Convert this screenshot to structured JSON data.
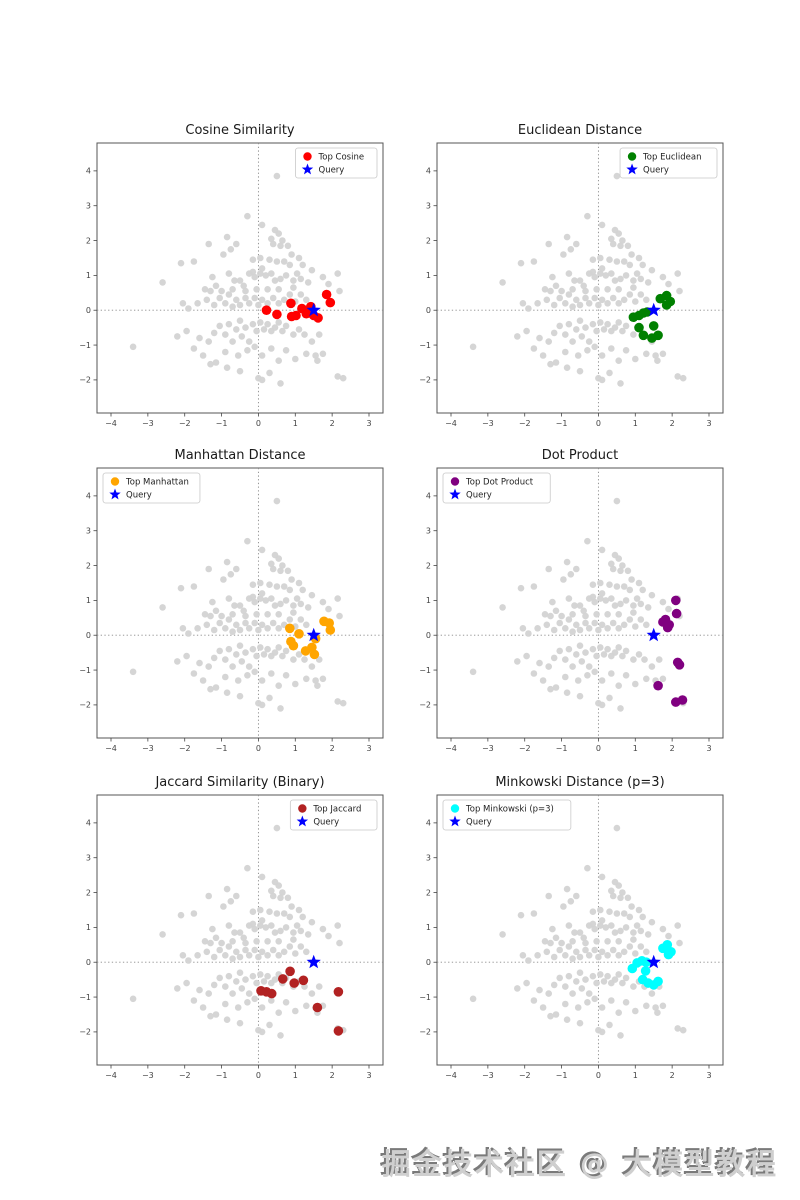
{
  "page": {
    "background": "#ffffff",
    "watermark": "掘金技术社区 @ 大模型教程"
  },
  "chart_data": {
    "type": "scatter",
    "grid": {
      "rows": 3,
      "cols": 2
    },
    "axes": {
      "xlim": [
        -4.38,
        3.38
      ],
      "ylim": [
        -2.95,
        4.8
      ],
      "xticks": [
        -4,
        -3,
        -2,
        -1,
        0,
        1,
        2,
        3
      ],
      "yticks": [
        -2,
        -1,
        0,
        1,
        2,
        3,
        4
      ],
      "zero_lines": "dotted gray at x=0 and y=0",
      "grid_on": false,
      "spine_color": "#555555",
      "tick_label_color": "#444444"
    },
    "query": {
      "label": "Query",
      "point": [
        1.5,
        0.0
      ],
      "color": "#0000ff",
      "marker": "star"
    },
    "background_series": {
      "name": "all-vectors",
      "color": "#d3d3d3",
      "points": [
        [
          -3.4,
          -1.05
        ],
        [
          -2.6,
          0.8
        ],
        [
          -2.1,
          1.35
        ],
        [
          -1.75,
          1.4
        ],
        [
          -1.35,
          1.9
        ],
        [
          -0.85,
          2.1
        ],
        [
          -0.6,
          1.9
        ],
        [
          -0.3,
          2.7
        ],
        [
          0.1,
          2.45
        ],
        [
          0.5,
          3.85
        ],
        [
          0.35,
          2.05
        ],
        [
          0.55,
          2.2
        ],
        [
          0.4,
          1.9
        ],
        [
          0.6,
          1.85
        ],
        [
          0.8,
          1.85
        ],
        [
          -0.95,
          1.6
        ],
        [
          -1.25,
          0.95
        ],
        [
          -1.3,
          0.55
        ],
        [
          -0.75,
          1.75
        ],
        [
          -0.15,
          1.45
        ],
        [
          0.05,
          1.5
        ],
        [
          0.3,
          1.45
        ],
        [
          0.5,
          1.4
        ],
        [
          0.7,
          1.4
        ],
        [
          0.85,
          1.3
        ],
        [
          0.1,
          1.2
        ],
        [
          -0.15,
          1.1
        ],
        [
          1.05,
          1.05
        ],
        [
          2.15,
          1.05
        ],
        [
          -0.8,
          1.05
        ],
        [
          -0.65,
          0.85
        ],
        [
          -0.5,
          0.85
        ],
        [
          -0.4,
          0.7
        ],
        [
          -1.15,
          0.7
        ],
        [
          -0.25,
          1.05
        ],
        [
          -0.1,
          0.95
        ],
        [
          0.05,
          1.05
        ],
        [
          0.2,
          1.0
        ],
        [
          0.35,
          1.05
        ],
        [
          0.45,
          0.85
        ],
        [
          0.6,
          0.9
        ],
        [
          0.75,
          1.0
        ],
        [
          0.95,
          0.85
        ],
        [
          1.15,
          0.9
        ],
        [
          1.35,
          0.8
        ],
        [
          1.75,
          0.95
        ],
        [
          1.9,
          0.75
        ],
        [
          2.2,
          0.55
        ],
        [
          -2.05,
          0.2
        ],
        [
          -1.9,
          0.05
        ],
        [
          -1.65,
          0.2
        ],
        [
          -1.4,
          0.3
        ],
        [
          -1.2,
          0.15
        ],
        [
          -1.05,
          0.35
        ],
        [
          -0.9,
          0.2
        ],
        [
          -0.8,
          0.45
        ],
        [
          -0.7,
          0.1
        ],
        [
          -0.6,
          0.3
        ],
        [
          -0.5,
          0.15
        ],
        [
          -0.35,
          0.35
        ],
        [
          -0.25,
          0.2
        ],
        [
          -0.1,
          0.35
        ],
        [
          0.0,
          0.15
        ],
        [
          0.1,
          0.3
        ],
        [
          0.25,
          0.2
        ],
        [
          0.4,
          0.35
        ],
        [
          0.55,
          0.2
        ],
        [
          0.7,
          0.3
        ],
        [
          0.85,
          0.45
        ],
        [
          1.0,
          0.25
        ],
        [
          1.15,
          0.45
        ],
        [
          1.3,
          0.3
        ],
        [
          0.95,
          0.65
        ],
        [
          0.55,
          0.6
        ],
        [
          0.25,
          0.6
        ],
        [
          -0.05,
          0.6
        ],
        [
          -0.35,
          0.55
        ],
        [
          -0.7,
          0.6
        ],
        [
          -1.0,
          0.55
        ],
        [
          -1.45,
          0.6
        ],
        [
          -2.2,
          -0.75
        ],
        [
          -1.95,
          -0.6
        ],
        [
          -1.75,
          -1.1
        ],
        [
          -1.6,
          -0.8
        ],
        [
          -1.5,
          -1.3
        ],
        [
          -1.3,
          -1.55
        ],
        [
          -1.15,
          -1.5
        ],
        [
          -1.35,
          -0.9
        ],
        [
          -1.2,
          -0.65
        ],
        [
          -1.05,
          -0.45
        ],
        [
          -0.9,
          -0.7
        ],
        [
          -0.8,
          -0.4
        ],
        [
          -0.7,
          -0.9
        ],
        [
          -0.6,
          -0.55
        ],
        [
          -0.5,
          -0.3
        ],
        [
          -0.45,
          -0.75
        ],
        [
          -0.35,
          -0.5
        ],
        [
          -0.25,
          -0.9
        ],
        [
          -0.15,
          -0.4
        ],
        [
          -0.05,
          -0.6
        ],
        [
          0.05,
          -0.35
        ],
        [
          0.15,
          -0.55
        ],
        [
          0.25,
          -0.4
        ],
        [
          0.35,
          -0.6
        ],
        [
          0.45,
          -0.5
        ],
        [
          0.55,
          -0.35
        ],
        [
          0.65,
          -0.6
        ],
        [
          0.75,
          -0.45
        ],
        [
          0.95,
          -0.7
        ],
        [
          1.1,
          -0.55
        ],
        [
          1.25,
          -0.7
        ],
        [
          1.45,
          -0.9
        ],
        [
          1.65,
          -0.7
        ],
        [
          -0.9,
          -1.2
        ],
        [
          -0.55,
          -1.3
        ],
        [
          -0.3,
          -1.15
        ],
        [
          -0.1,
          -1.05
        ],
        [
          0.1,
          -1.3
        ],
        [
          0.35,
          -1.1
        ],
        [
          0.55,
          -1.45
        ],
        [
          0.75,
          -1.15
        ],
        [
          1.0,
          -1.4
        ],
        [
          1.3,
          -1.25
        ],
        [
          1.55,
          -1.3
        ],
        [
          1.75,
          -1.25
        ],
        [
          0.0,
          -1.95
        ],
        [
          0.1,
          -2.0
        ],
        [
          0.3,
          -1.8
        ],
        [
          0.6,
          -2.1
        ],
        [
          -0.5,
          -1.75
        ],
        [
          -0.85,
          -1.65
        ],
        [
          1.6,
          -1.45
        ],
        [
          2.3,
          -1.95
        ],
        [
          2.15,
          -1.9
        ],
        [
          0.45,
          2.3
        ],
        [
          0.65,
          2.0
        ],
        [
          1.2,
          1.3
        ],
        [
          1.45,
          1.15
        ],
        [
          0.9,
          1.6
        ],
        [
          1.1,
          1.5
        ]
      ]
    },
    "panels": [
      {
        "id": "cosine-similarity",
        "title": "Cosine Similarity",
        "legend_label": "Top Cosine",
        "color": "#ff0000",
        "legend_loc": "upper-right",
        "top_points": [
          [
            0.22,
            0.0
          ],
          [
            0.5,
            -0.12
          ],
          [
            0.88,
            0.2
          ],
          [
            0.9,
            -0.18
          ],
          [
            1.02,
            -0.15
          ],
          [
            1.18,
            0.05
          ],
          [
            1.3,
            -0.1
          ],
          [
            1.42,
            0.1
          ],
          [
            1.5,
            -0.15
          ],
          [
            1.62,
            -0.22
          ],
          [
            1.85,
            0.45
          ],
          [
            1.95,
            0.22
          ]
        ]
      },
      {
        "id": "euclidean-distance",
        "title": "Euclidean Distance",
        "legend_label": "Top Euclidean",
        "color": "#008000",
        "legend_loc": "upper-right",
        "top_points": [
          [
            0.95,
            -0.2
          ],
          [
            1.1,
            -0.15
          ],
          [
            1.22,
            -0.08
          ],
          [
            1.32,
            -0.05
          ],
          [
            1.1,
            -0.5
          ],
          [
            1.22,
            -0.72
          ],
          [
            1.45,
            -0.8
          ],
          [
            1.62,
            -0.72
          ],
          [
            1.5,
            -0.45
          ],
          [
            1.68,
            0.33
          ],
          [
            1.85,
            0.42
          ],
          [
            1.85,
            0.15
          ],
          [
            1.95,
            0.25
          ]
        ]
      },
      {
        "id": "manhattan-distance",
        "title": "Manhattan Distance",
        "legend_label": "Top Manhattan",
        "color": "#ffa500",
        "legend_loc": "upper-left",
        "top_points": [
          [
            0.85,
            0.2
          ],
          [
            0.88,
            -0.18
          ],
          [
            0.95,
            -0.3
          ],
          [
            1.1,
            0.04
          ],
          [
            1.28,
            -0.45
          ],
          [
            1.45,
            -0.35
          ],
          [
            1.52,
            -0.55
          ],
          [
            1.55,
            -0.1
          ],
          [
            1.78,
            0.4
          ],
          [
            1.92,
            0.35
          ],
          [
            1.95,
            0.15
          ]
        ]
      },
      {
        "id": "dot-product",
        "title": "Dot Product",
        "legend_label": "Top Dot Product",
        "color": "#800080",
        "legend_loc": "upper-left",
        "top_points": [
          [
            1.62,
            -1.45
          ],
          [
            1.75,
            0.38
          ],
          [
            1.82,
            0.45
          ],
          [
            1.88,
            0.22
          ],
          [
            1.92,
            0.3
          ],
          [
            2.1,
            1.0
          ],
          [
            2.12,
            0.62
          ],
          [
            2.15,
            -0.78
          ],
          [
            2.2,
            -0.85
          ],
          [
            2.1,
            -1.92
          ],
          [
            2.28,
            -1.86
          ]
        ]
      },
      {
        "id": "jaccard-similarity",
        "title": "Jaccard Similarity (Binary)",
        "legend_label": "Top Jaccard",
        "color": "#b22222",
        "legend_loc": "upper-right",
        "top_points": [
          [
            0.07,
            -0.82
          ],
          [
            0.22,
            -0.85
          ],
          [
            0.36,
            -0.9
          ],
          [
            0.66,
            -0.48
          ],
          [
            0.86,
            -0.26
          ],
          [
            0.97,
            -0.6
          ],
          [
            1.22,
            -0.52
          ],
          [
            1.6,
            -1.3
          ],
          [
            2.17,
            -0.85
          ],
          [
            2.17,
            -1.97
          ]
        ]
      },
      {
        "id": "minkowski-distance",
        "title": "Minkowski Distance (p=3)",
        "legend_label": "Top Minkowski (p=3)",
        "color": "#00ffff",
        "legend_loc": "upper-left",
        "top_points": [
          [
            0.92,
            -0.18
          ],
          [
            1.05,
            -0.02
          ],
          [
            1.18,
            0.04
          ],
          [
            1.3,
            0.0
          ],
          [
            1.28,
            -0.25
          ],
          [
            1.2,
            -0.5
          ],
          [
            1.35,
            -0.6
          ],
          [
            1.5,
            -0.65
          ],
          [
            1.62,
            -0.55
          ],
          [
            1.75,
            0.4
          ],
          [
            1.87,
            0.5
          ],
          [
            1.9,
            0.22
          ],
          [
            1.97,
            0.3
          ]
        ]
      }
    ]
  }
}
